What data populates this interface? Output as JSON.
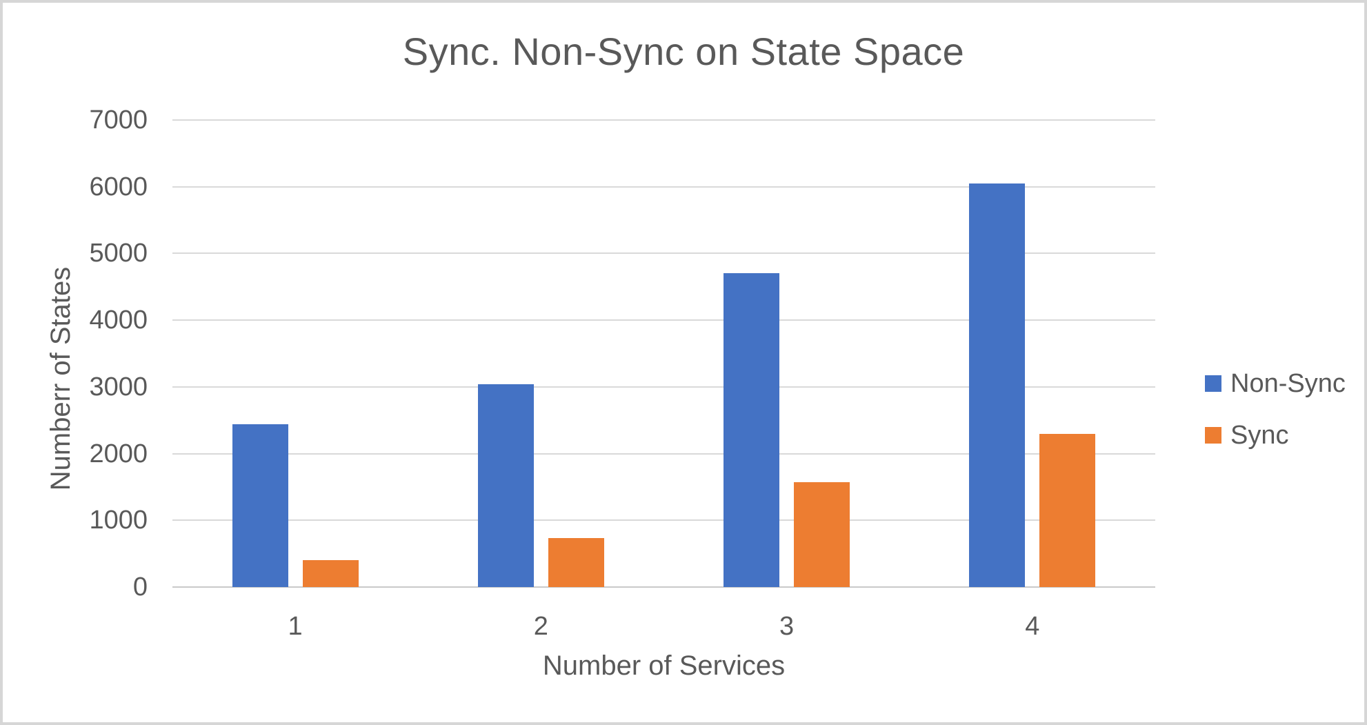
{
  "chart_data": {
    "type": "bar",
    "title": "Sync. Non-Sync on State Space",
    "xlabel": "Number of Services",
    "ylabel": "Numberr of States",
    "categories": [
      "1",
      "2",
      "3",
      "4"
    ],
    "series": [
      {
        "name": "Non-Sync",
        "color": "#4472C4",
        "values": [
          2440,
          3040,
          4700,
          6050
        ]
      },
      {
        "name": "Sync",
        "color": "#ED7D31",
        "values": [
          400,
          730,
          1570,
          2300
        ]
      }
    ],
    "ylim": [
      0,
      7000
    ],
    "yticks": [
      0,
      1000,
      2000,
      3000,
      4000,
      5000,
      6000,
      7000
    ],
    "grid": true,
    "legend_position": "right",
    "legend_entries": [
      "Non-Sync",
      "Sync"
    ]
  },
  "colors": {
    "background": "#FFFFFF",
    "frame_border": "#D6D6D6",
    "gridline": "#D9D9D9",
    "axis_line": "#C9C9C9",
    "text": "#595959",
    "non_sync_bar": "#4472C4",
    "sync_bar": "#ED7D31"
  }
}
